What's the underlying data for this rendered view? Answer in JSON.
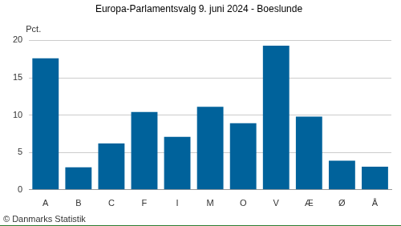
{
  "chart_data": {
    "type": "bar",
    "title": "Europa-Parlamentsvalg 9. juni 2024 - Boeslunde",
    "ylabel": "Pct.",
    "footnote": "© Danmarks Statistik",
    "categories": [
      "A",
      "B",
      "C",
      "F",
      "I",
      "M",
      "O",
      "V",
      "Æ",
      "Ø",
      "Å"
    ],
    "values": [
      17.6,
      3.0,
      6.2,
      10.4,
      7.1,
      11.1,
      8.9,
      19.3,
      9.8,
      3.9,
      3.1
    ],
    "color": "#00629b",
    "ylim": [
      0,
      20
    ],
    "yticks": [
      0,
      5,
      10,
      15,
      20
    ],
    "grid": true
  }
}
